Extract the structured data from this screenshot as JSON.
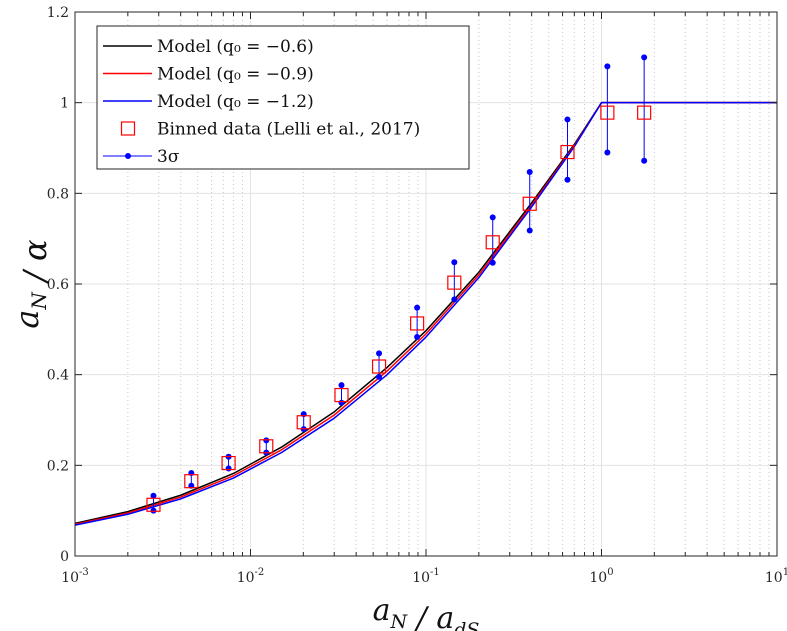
{
  "chart_data": {
    "type": "line",
    "title": "",
    "xlabel": "a_N / a_dS",
    "ylabel": "a_N / α",
    "xscale": "log",
    "xlim": [
      0.001,
      10
    ],
    "ylim": [
      0,
      1.2
    ],
    "grid": true,
    "legend_position": "top-left",
    "x_tick_labels": [
      {
        "base": "10",
        "exp": "-3"
      },
      {
        "base": "10",
        "exp": "-2"
      },
      {
        "base": "10",
        "exp": "-1"
      },
      {
        "base": "10",
        "exp": "0"
      },
      {
        "base": "10",
        "exp": "1"
      }
    ],
    "y_tick_labels": [
      "0",
      "0.2",
      "0.4",
      "0.6",
      "0.8",
      "1",
      "1.2"
    ],
    "series": [
      {
        "name": "Model (q₀ = −0.6)",
        "color": "#000000",
        "x": [
          0.001,
          0.002,
          0.004,
          0.008,
          0.015,
          0.03,
          0.06,
          0.1,
          0.2,
          0.4,
          0.7,
          1.0,
          10
        ],
        "y": [
          0.072,
          0.098,
          0.134,
          0.182,
          0.24,
          0.318,
          0.416,
          0.497,
          0.626,
          0.779,
          0.908,
          1.0,
          1.0
        ]
      },
      {
        "name": "Model (q₀ = −0.9)",
        "color": "#ff0000",
        "x": [
          0.001,
          0.002,
          0.004,
          0.008,
          0.015,
          0.03,
          0.06,
          0.1,
          0.2,
          0.4,
          0.7,
          1.0,
          10
        ],
        "y": [
          0.07,
          0.095,
          0.13,
          0.177,
          0.234,
          0.311,
          0.408,
          0.49,
          0.62,
          0.774,
          0.905,
          1.0,
          1.0
        ]
      },
      {
        "name": "Model (q₀ = −1.2)",
        "color": "#0000ff",
        "x": [
          0.001,
          0.002,
          0.004,
          0.008,
          0.015,
          0.03,
          0.06,
          0.1,
          0.2,
          0.4,
          0.7,
          1.0,
          10
        ],
        "y": [
          0.068,
          0.092,
          0.126,
          0.172,
          0.228,
          0.304,
          0.4,
          0.483,
          0.614,
          0.77,
          0.903,
          1.0,
          1.0
        ]
      }
    ],
    "binned_data": {
      "name": "Binned data (Lelli et al., 2017)",
      "color": "#ff0000",
      "x": [
        0.0028,
        0.0046,
        0.0075,
        0.0123,
        0.0201,
        0.033,
        0.054,
        0.089,
        0.145,
        0.24,
        0.39,
        0.64,
        1.08,
        1.75
      ],
      "y": [
        0.113,
        0.165,
        0.205,
        0.242,
        0.295,
        0.355,
        0.418,
        0.513,
        0.603,
        0.692,
        0.777,
        0.891,
        0.978,
        0.978
      ]
    },
    "error_bars": {
      "name": "3σ",
      "color": "#0000ff",
      "x": [
        0.0028,
        0.0046,
        0.0075,
        0.0123,
        0.0201,
        0.033,
        0.054,
        0.089,
        0.145,
        0.24,
        0.39,
        0.64,
        1.08,
        1.75
      ],
      "y_low": [
        0.1,
        0.155,
        0.193,
        0.228,
        0.28,
        0.338,
        0.395,
        0.483,
        0.566,
        0.647,
        0.718,
        0.83,
        0.89,
        0.872
      ],
      "y_high": [
        0.133,
        0.183,
        0.219,
        0.255,
        0.313,
        0.377,
        0.447,
        0.548,
        0.648,
        0.747,
        0.847,
        0.963,
        1.08,
        1.1
      ]
    }
  }
}
